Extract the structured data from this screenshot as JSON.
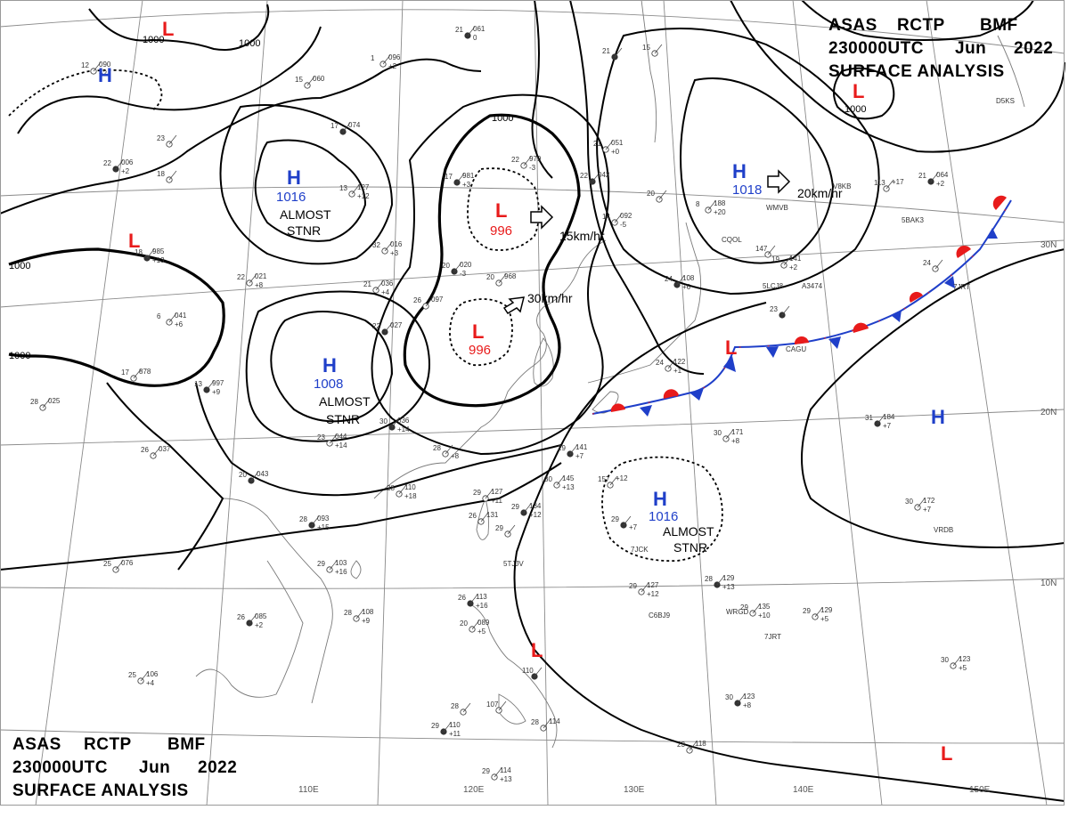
{
  "titles": {
    "top": [
      "ASAS",
      "RCTP",
      "BMF",
      "230000UTC",
      "Jun",
      "2022",
      "SURFACE ANALYSIS"
    ],
    "bottom": [
      "ASAS",
      "RCTP",
      "BMF",
      "230000UTC",
      "Jun",
      "2022",
      "SURFACE ANALYSIS"
    ]
  },
  "grid_labels": {
    "longitudes": [
      "110E",
      "120E",
      "130E",
      "140E",
      "150E"
    ],
    "latitudes": [
      "30N",
      "20N",
      "10N"
    ]
  },
  "colors": {
    "high": "#1f3fc9",
    "low": "#e81b1b",
    "cold_front": "#1f3fc9",
    "warm_front": "#e81b1b"
  },
  "pressure_systems": [
    {
      "type": "L",
      "value": ""
    },
    {
      "type": "H",
      "value": ""
    },
    {
      "type": "H",
      "value": "1016",
      "note": [
        "ALMOST",
        "STNR"
      ]
    },
    {
      "type": "L",
      "value": ""
    },
    {
      "type": "L",
      "value": "996",
      "speed": "15km/hr"
    },
    {
      "type": "L",
      "value": "996",
      "speed": "30km/hr"
    },
    {
      "type": "H",
      "value": "1008",
      "note": [
        "ALMOST",
        "STNR"
      ]
    },
    {
      "type": "H",
      "value": "1018",
      "speed": "20km/hr"
    },
    {
      "type": "L",
      "value": "1000"
    },
    {
      "type": "H",
      "value": ""
    },
    {
      "type": "H",
      "value": "1016",
      "note": [
        "ALMOST",
        "STNR"
      ]
    },
    {
      "type": "L",
      "value": ""
    },
    {
      "type": "L",
      "value": ""
    }
  ],
  "isobar_labels": [
    "1000",
    "1000",
    "1000",
    "1000",
    "1000",
    "1000"
  ],
  "stations": [
    [
      "21",
      "061",
      "0"
    ],
    [
      "1",
      "096",
      "+2"
    ],
    [
      "15",
      "060",
      ""
    ],
    [
      "17",
      "074",
      ""
    ],
    [
      "12",
      "090",
      "+2"
    ],
    [
      "23",
      "",
      ""
    ],
    [
      "22",
      "006",
      "+2"
    ],
    [
      "18",
      "",
      ""
    ],
    [
      "13",
      "127",
      "+12"
    ],
    [
      "18",
      "985",
      "+13"
    ],
    [
      "22",
      "021",
      "+8"
    ],
    [
      "32",
      "016",
      "+3"
    ],
    [
      "17",
      "981",
      "+3"
    ],
    [
      "22",
      "979",
      "-3"
    ],
    [
      "21",
      "036",
      "+4"
    ],
    [
      "20",
      "020",
      "-3"
    ],
    [
      "20",
      "968",
      ""
    ],
    [
      "6",
      "041",
      "+6"
    ],
    [
      "22",
      "027",
      ""
    ],
    [
      "26",
      "097",
      ""
    ],
    [
      "17",
      "878",
      ""
    ],
    [
      "13",
      "997",
      "+9"
    ],
    [
      "28",
      "025",
      ""
    ],
    [
      "26",
      "037",
      ""
    ],
    [
      "30",
      "036",
      "+14"
    ],
    [
      "23",
      "044",
      "+14"
    ],
    [
      "28",
      "",
      "+8"
    ],
    [
      "20",
      "043",
      ""
    ],
    [
      "28",
      "110",
      "+18"
    ],
    [
      "29",
      "127",
      "+11"
    ],
    [
      "29",
      "141",
      "+7"
    ],
    [
      "30",
      "145",
      "+13"
    ],
    [
      "157",
      "+12",
      ""
    ],
    [
      "29",
      "134",
      "+12"
    ],
    [
      "26",
      "131",
      ""
    ],
    [
      "29",
      "",
      ""
    ],
    [
      "28",
      "093",
      "+15"
    ],
    [
      "29",
      "103",
      "+16"
    ],
    [
      "25",
      "076",
      ""
    ],
    [
      "26",
      "085",
      "+2"
    ],
    [
      "28",
      "108",
      "+9"
    ],
    [
      "25",
      "106",
      "+4"
    ],
    [
      "29",
      "110",
      "+11"
    ],
    [
      "29",
      "114",
      "+13"
    ],
    [
      "28",
      "114",
      ""
    ],
    [
      "26",
      "113",
      "+16"
    ],
    [
      "20",
      "089",
      "+5"
    ],
    [
      "107",
      "",
      ""
    ],
    [
      "110",
      "",
      ""
    ],
    [
      "28",
      "",
      ""
    ],
    [
      "21",
      "051",
      "+0"
    ],
    [
      "22",
      "042",
      ""
    ],
    [
      "14",
      "092",
      "-5"
    ],
    [
      "20",
      "",
      ""
    ],
    [
      "21",
      "",
      ""
    ],
    [
      "15",
      "",
      ""
    ],
    [
      "8",
      "188",
      "+20"
    ],
    [
      "24",
      "108",
      "+6"
    ],
    [
      "19",
      "141",
      "+2"
    ],
    [
      "147",
      "",
      ""
    ],
    [
      "21",
      "064",
      "+2"
    ],
    [
      "113",
      "+17",
      ""
    ],
    [
      "24",
      "",
      ""
    ],
    [
      "23",
      "",
      ""
    ],
    [
      "24",
      "122",
      "+1"
    ],
    [
      "30",
      "171",
      "+8"
    ],
    [
      "31",
      "184",
      "+7"
    ],
    [
      "30",
      "172",
      "+7"
    ],
    [
      "29",
      "127",
      "+12"
    ],
    [
      "28",
      "129",
      "+13"
    ],
    [
      "29",
      "135",
      "+10"
    ],
    [
      "29",
      "129",
      "+5"
    ],
    [
      "30",
      "123",
      "+8"
    ],
    [
      "30",
      "123",
      "+5"
    ],
    [
      "23",
      "118",
      ""
    ],
    [
      "29",
      "",
      "+7"
    ]
  ],
  "station_ids": [
    "CQOL",
    "5LCJ8",
    "A3474",
    "WMVB",
    "5BAK3",
    "D5KS",
    "7JRT",
    "CAGU",
    "VRDB",
    "C6BJ9",
    "WRGD",
    "7JRT",
    "5TJJV",
    "7JCK",
    "V8KB"
  ]
}
